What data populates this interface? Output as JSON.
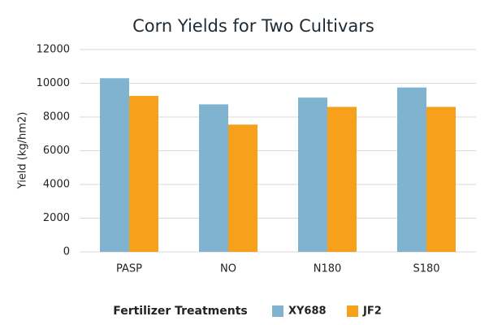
{
  "chart_data": {
    "type": "bar",
    "title": "Corn Yields for Two Cultivars",
    "x_label": "Fertilizer Treatments",
    "y_label": "Yield (kg/hm2)",
    "categories": [
      "PASP",
      "NO",
      "N180",
      "S180"
    ],
    "series": [
      {
        "name": "XY688",
        "color": "#7fb3d0",
        "values": [
          10300,
          8750,
          9150,
          9750
        ]
      },
      {
        "name": "JF2",
        "color": "#f7a01c",
        "values": [
          9250,
          7550,
          8600,
          8600
        ]
      }
    ],
    "ylim": [
      0,
      12000
    ],
    "yticks": [
      0,
      2000,
      4000,
      6000,
      8000,
      10000,
      12000
    ],
    "grid": true
  }
}
